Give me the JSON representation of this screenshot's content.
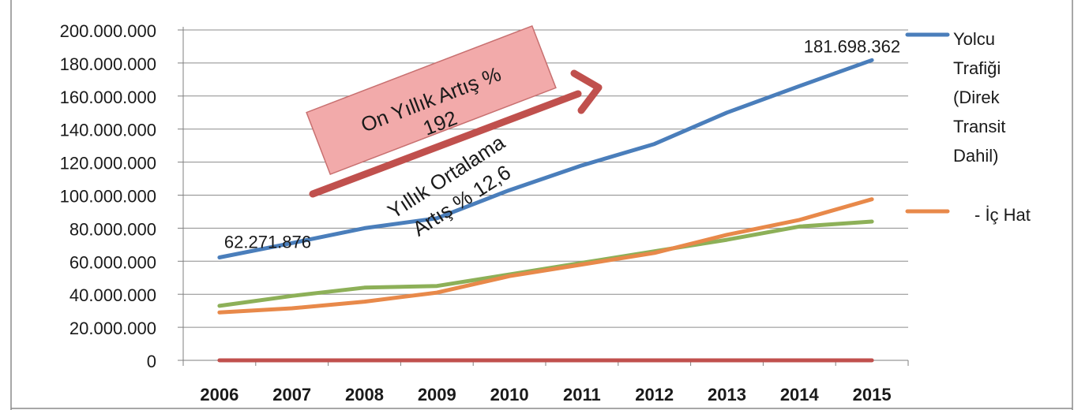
{
  "chart_data": {
    "type": "line",
    "categories": [
      "2006",
      "2007",
      "2008",
      "2009",
      "2010",
      "2011",
      "2012",
      "2013",
      "2014",
      "2015"
    ],
    "ylim": [
      0,
      200000000
    ],
    "y_ticks": [
      0,
      20000000,
      40000000,
      60000000,
      80000000,
      100000000,
      120000000,
      140000000,
      160000000,
      180000000,
      200000000
    ],
    "y_tick_labels": [
      "0",
      "20.000.000",
      "40.000.000",
      "60.000.000",
      "80.000.000",
      "100.000.000",
      "120.000.000",
      "140.000.000",
      "160.000.000",
      "180.000.000",
      "200.000.000"
    ],
    "grid": true,
    "legend_position": "right",
    "series": [
      {
        "name": "Yolcu Trafiği (Direk Transit Dahil)",
        "legend_lines": [
          "Yolcu",
          "Trafiği",
          "(Direk",
          "Transit",
          "Dahil)"
        ],
        "color": "#4a7ebb",
        "values": [
          62271876,
          71000000,
          80000000,
          86000000,
          103000000,
          118000000,
          131000000,
          150000000,
          166000000,
          181698362
        ]
      },
      {
        "name": "- İç Hat",
        "legend_lines": [
          "- İç Hat"
        ],
        "color": "#e8894a",
        "values": [
          29000000,
          31500000,
          35500000,
          41000000,
          51000000,
          58000000,
          65000000,
          76000000,
          85000000,
          97500000
        ]
      },
      {
        "name": "",
        "color": "#8db058",
        "values": [
          33000000,
          39000000,
          44000000,
          45000000,
          52000000,
          59000000,
          66000000,
          73000000,
          81000000,
          84000000
        ]
      },
      {
        "name": "",
        "color": "#c0504d",
        "values": [
          0,
          0,
          0,
          0,
          0,
          0,
          0,
          0,
          0,
          0
        ]
      }
    ],
    "data_labels": [
      {
        "text": "62.271.876",
        "series": 0,
        "index": 0
      },
      {
        "text": "181.698.362",
        "series": 0,
        "index": 9
      }
    ],
    "annotations": {
      "box_lines": [
        "On Yıllık Artış %",
        "192"
      ],
      "avg_lines": [
        "Yıllık Ortalama",
        "Artış % 12,6"
      ],
      "box_color": "#f2aaaa",
      "arrow_color": "#c0504d"
    }
  }
}
